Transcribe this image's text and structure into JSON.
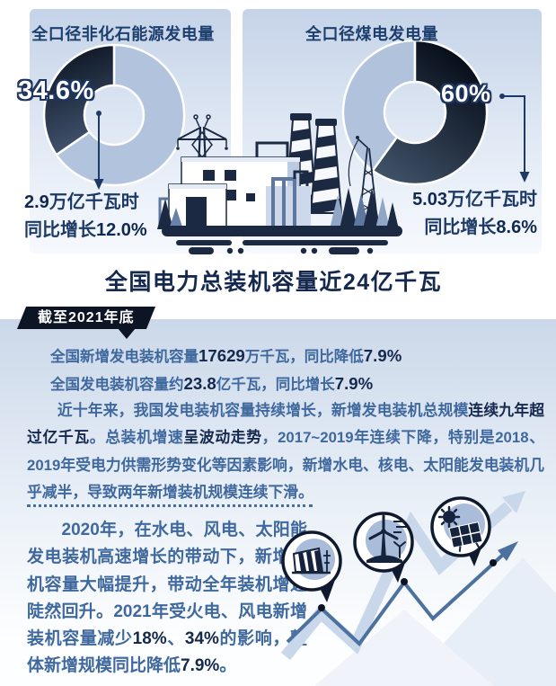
{
  "colors": {
    "ink": "#14294d",
    "steel_text": "#3f699e",
    "panel_top": "#c5d3e8",
    "slice_light": "#b2c3dd",
    "slice_dark_top": "#0a1422",
    "slice_dark_bottom": "#41536d",
    "badge_bg": "#0d1423",
    "arrow_light": "#c9d7ea",
    "arrow_dark": "#4c719f"
  },
  "panel_left": {
    "header": "全口径非化石能源发电量",
    "pct": "34.6%",
    "value": [
      {
        "t": "2.9",
        "b": true
      },
      {
        "t": "万亿千瓦时"
      }
    ],
    "growth": [
      {
        "t": "同比增长"
      },
      {
        "t": "12.0%",
        "b": true
      }
    ]
  },
  "panel_right": {
    "header": "全口径煤电发电量",
    "pct": "60%",
    "value": [
      {
        "t": "5.03",
        "b": true
      },
      {
        "t": "万亿千瓦时"
      }
    ],
    "growth": [
      {
        "t": "同比增长"
      },
      {
        "t": "8.6%",
        "b": true
      }
    ]
  },
  "main_title": "全国电力总装机容量近24亿千瓦",
  "badge": {
    "label": "截至2021年底"
  },
  "stats": {
    "line1": [
      {
        "t": "全国新增发电装机容量"
      },
      {
        "t": "17629",
        "b": true
      },
      {
        "t": "万千瓦，同比降低"
      },
      {
        "t": "7.9%",
        "b": true
      }
    ],
    "line2": [
      {
        "t": "全国发电装机容量约"
      },
      {
        "t": "23.8",
        "b": true
      },
      {
        "t": "亿千瓦，同比增长"
      },
      {
        "t": "7.9%",
        "b": true
      }
    ]
  },
  "para_history": [
    {
      "t": "　　近十年来，我国发电装机容量持续增长，新增发电装机总规模"
    },
    {
      "t": "连续九年超过亿千瓦",
      "b": true
    },
    {
      "t": "。总装机增速"
    },
    {
      "t": "呈波动走势",
      "b": true
    },
    {
      "t": "，2017~2019年连续下降，特别是2018、2019年受电力供需形势变化等因素影响，新增水电、核电、太阳能发电装机几乎减半，导致两年新增装机规模连续下滑。"
    }
  ],
  "para_2020": [
    {
      "t": "　　2020年，在水电、风电、太阳能发电装机高速增长的带动下，新增装机容量大幅提升，带动全年装机增速陡然回升。2021年受火电、风电新增装机容量减少"
    },
    {
      "t": "18%",
      "b": true
    },
    {
      "t": "、"
    },
    {
      "t": "34%",
      "b": true
    },
    {
      "t": "的影响，整体新增规模同比降低"
    },
    {
      "t": "7.9%",
      "b": true
    },
    {
      "t": "。"
    }
  ],
  "icons": {
    "hydro": "hydropower-dam-icon",
    "wind": "wind-turbine-icon",
    "solar": "solar-panel-icon",
    "plant": "power-plant-illustration",
    "trend": "rising-arrow-trend-illustration"
  },
  "chart_data": [
    {
      "type": "pie",
      "title": "全口径非化石能源发电量",
      "slices": [
        {
          "label": "全口径非化石能源发电量",
          "value": 34.6
        },
        {
          "label": "其他",
          "value": 65.4
        }
      ],
      "donut": true,
      "highlight_label": "34.6%",
      "annotation": "2.9万亿千瓦时 同比增长12.0%"
    },
    {
      "type": "pie",
      "title": "全口径煤电发电量",
      "slices": [
        {
          "label": "全口径煤电发电量",
          "value": 60
        },
        {
          "label": "其他",
          "value": 40
        }
      ],
      "donut": true,
      "highlight_label": "60%",
      "annotation": "5.03万亿千瓦时 同比增长8.6%"
    }
  ]
}
